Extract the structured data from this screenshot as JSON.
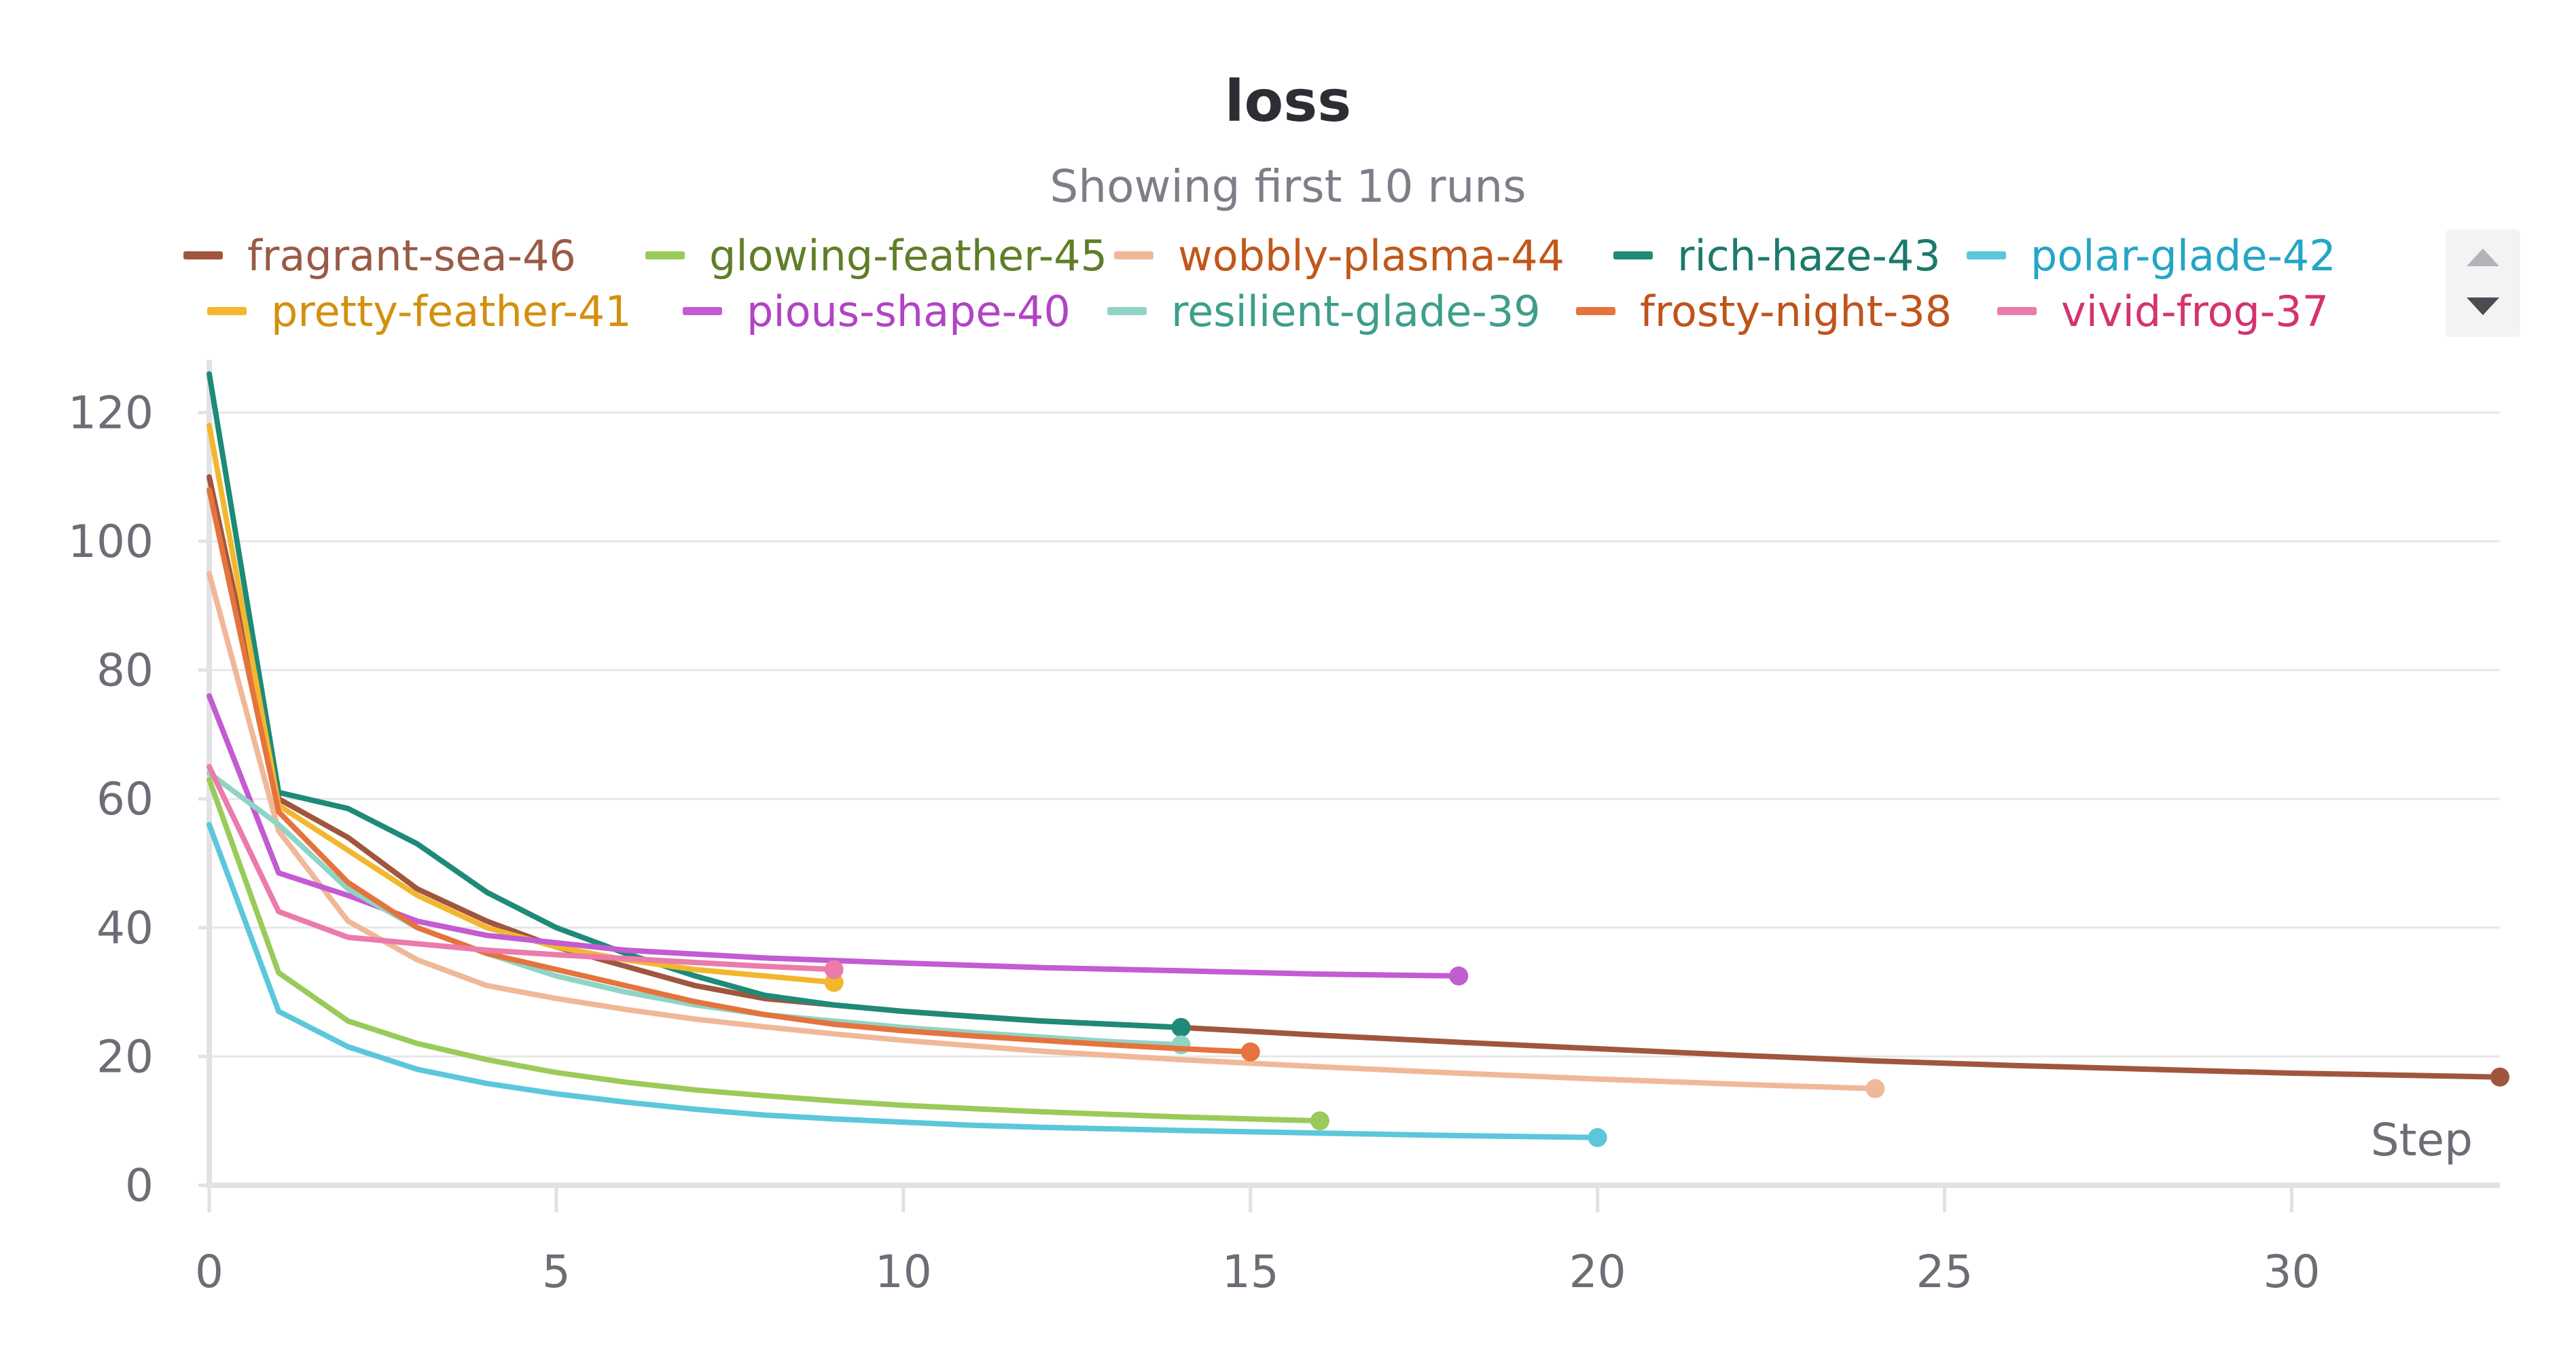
{
  "chart_data": {
    "type": "line",
    "title": "loss",
    "subtitle": "Showing first 10 runs",
    "xlabel": "Step",
    "ylabel": "",
    "xlim": [
      0,
      33
    ],
    "ylim": [
      0,
      125
    ],
    "x_ticks": [
      0,
      5,
      10,
      15,
      20,
      25,
      30
    ],
    "y_ticks": [
      0,
      20,
      40,
      60,
      80,
      100,
      120
    ],
    "grid": true,
    "legend_position": "top",
    "series": [
      {
        "name": "fragrant-sea-46",
        "color": "#a0563e",
        "text_color": "#9a5a45",
        "x": [
          0,
          1,
          2,
          3,
          4,
          5,
          6,
          7,
          8,
          9,
          10,
          12,
          14,
          16,
          18,
          20,
          22,
          24,
          26,
          28,
          30,
          33
        ],
        "y": [
          110,
          60,
          54,
          46,
          41,
          37,
          34,
          31,
          29,
          28,
          27,
          25.5,
          24.5,
          23.3,
          22.2,
          21.2,
          20.2,
          19.3,
          18.6,
          18,
          17.4,
          16.8
        ]
      },
      {
        "name": "glowing-feather-45",
        "color": "#9acb5a",
        "text_color": "#5f7e27",
        "x": [
          0,
          1,
          2,
          3,
          4,
          5,
          6,
          7,
          8,
          9,
          10,
          11,
          12,
          13,
          14,
          15,
          16
        ],
        "y": [
          63,
          33,
          25.5,
          22,
          19.5,
          17.5,
          16,
          14.8,
          13.9,
          13.1,
          12.4,
          11.9,
          11.4,
          11,
          10.6,
          10.3,
          10
        ]
      },
      {
        "name": "wobbly-plasma-44",
        "color": "#f0b898",
        "text_color": "#c1571a",
        "x": [
          0,
          1,
          2,
          3,
          4,
          5,
          6,
          7,
          8,
          9,
          10,
          12,
          14,
          16,
          18,
          20,
          22,
          24
        ],
        "y": [
          95,
          55,
          41,
          35,
          31,
          29,
          27.3,
          25.8,
          24.6,
          23.5,
          22.5,
          20.8,
          19.5,
          18.4,
          17.4,
          16.5,
          15.7,
          15
        ]
      },
      {
        "name": "rich-haze-43",
        "color": "#1e8a78",
        "text_color": "#1b7a6a",
        "x": [
          0,
          1,
          2,
          3,
          4,
          5,
          6,
          7,
          8,
          9,
          10,
          11,
          12,
          13,
          14
        ],
        "y": [
          126,
          61,
          58.5,
          53,
          45.5,
          40,
          36,
          32.5,
          29.5,
          28,
          27,
          26.2,
          25.5,
          25,
          24.5
        ]
      },
      {
        "name": "polar-glade-42",
        "color": "#5cc7da",
        "text_color": "#24a6c6",
        "x": [
          0,
          1,
          2,
          3,
          4,
          5,
          6,
          7,
          8,
          9,
          10,
          11,
          12,
          14,
          16,
          18,
          20
        ],
        "y": [
          56,
          27,
          21.5,
          18,
          15.8,
          14.2,
          12.9,
          11.8,
          10.9,
          10.3,
          9.8,
          9.3,
          9,
          8.5,
          8.1,
          7.7,
          7.4
        ]
      },
      {
        "name": "pretty-feather-41",
        "color": "#f2b72f",
        "text_color": "#d3900f",
        "x": [
          0,
          1,
          2,
          3,
          4,
          5,
          6,
          7,
          8,
          9
        ],
        "y": [
          118,
          59,
          52,
          45,
          40,
          37,
          35,
          33.5,
          32.5,
          31.5
        ]
      },
      {
        "name": "pious-shape-40",
        "color": "#c35bd2",
        "text_color": "#b143c4",
        "x": [
          0,
          1,
          2,
          3,
          4,
          6,
          8,
          10,
          12,
          14,
          16,
          18
        ],
        "y": [
          76,
          48.5,
          45,
          41,
          38.8,
          36.5,
          35.3,
          34.5,
          33.8,
          33.3,
          32.8,
          32.5
        ]
      },
      {
        "name": "resilient-glade-39",
        "color": "#8fd4c4",
        "text_color": "#3d9e8b",
        "x": [
          0,
          1,
          2,
          3,
          4,
          5,
          6,
          7,
          8,
          9,
          10,
          11,
          12,
          13,
          14
        ],
        "y": [
          64,
          56,
          46,
          40,
          36,
          32.5,
          30,
          28,
          26.5,
          25.5,
          24.5,
          23.7,
          23,
          22.3,
          21.8
        ]
      },
      {
        "name": "frosty-night-38",
        "color": "#e5733d",
        "text_color": "#bf541b",
        "x": [
          0,
          1,
          2,
          3,
          4,
          5,
          6,
          7,
          8,
          9,
          10,
          11,
          12,
          13,
          14,
          15
        ],
        "y": [
          108,
          58,
          47,
          40,
          36,
          33.5,
          31,
          28.5,
          26.5,
          25,
          24,
          23.2,
          22.5,
          21.8,
          21.2,
          20.7
        ]
      },
      {
        "name": "vivid-frog-37",
        "color": "#ea7bab",
        "text_color": "#d4336f",
        "x": [
          0,
          1,
          2,
          3,
          4,
          5,
          6,
          7,
          8,
          9
        ],
        "y": [
          65,
          42.5,
          38.5,
          37.5,
          36.5,
          35.8,
          35.2,
          34.6,
          34,
          33.5
        ]
      }
    ]
  }
}
